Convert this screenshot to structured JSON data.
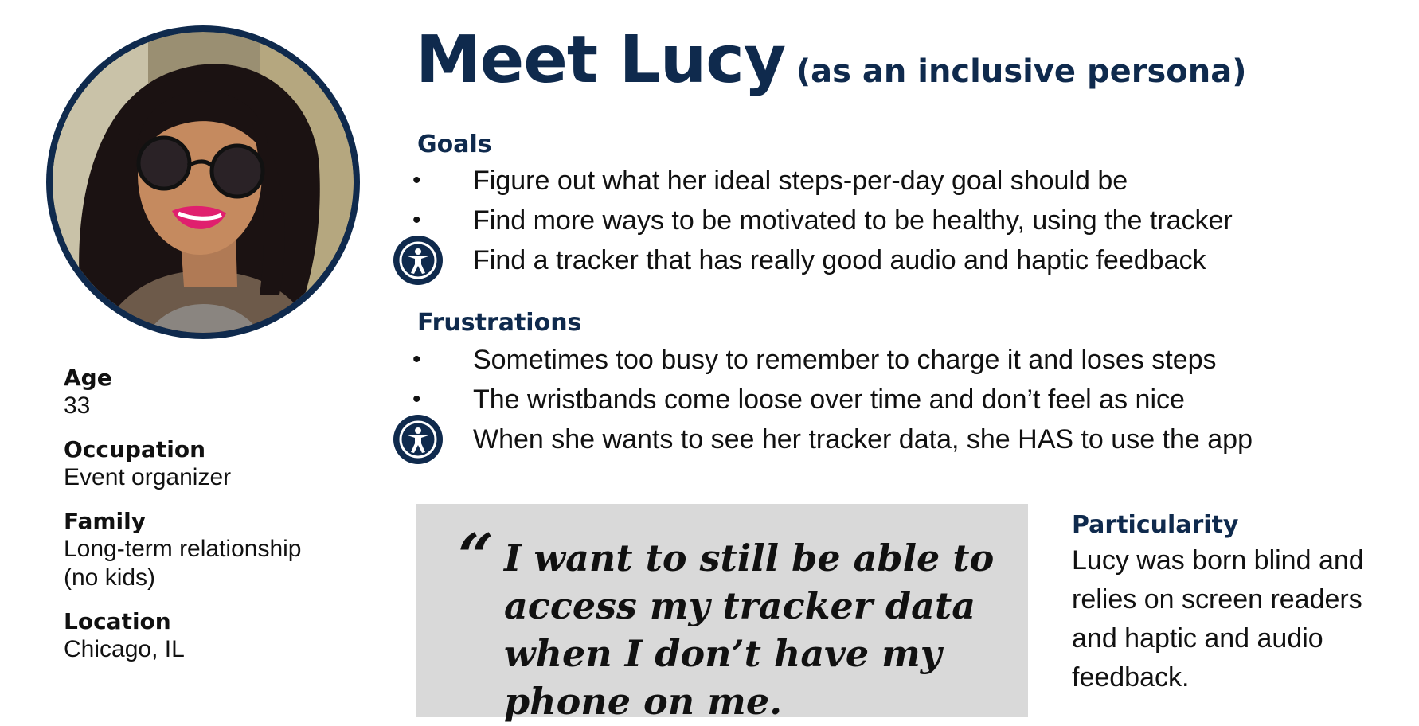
{
  "title": {
    "main": "Meet Lucy",
    "sub": "(as an inclusive persona)"
  },
  "goals": {
    "heading": "Goals",
    "items": [
      {
        "text": "Figure out what her ideal steps-per-day goal should be",
        "marker": "bullet"
      },
      {
        "text": "Find more ways to be motivated to be healthy, using the tracker",
        "marker": "bullet"
      },
      {
        "text": "Find a tracker that has really good audio and haptic feedback",
        "marker": "accessibility-icon"
      }
    ]
  },
  "frustrations": {
    "heading": "Frustrations",
    "items": [
      {
        "text": "Sometimes too busy to remember to charge it and loses steps",
        "marker": "bullet"
      },
      {
        "text": "The wristbands come loose over time and don’t feel as nice",
        "marker": "bullet"
      },
      {
        "text": "When she wants to see her tracker data, she HAS to use the app",
        "marker": "accessibility-icon"
      }
    ]
  },
  "profile": {
    "age_label": "Age",
    "age": "33",
    "occupation_label": "Occupation",
    "occupation": "Event organizer",
    "family_label": "Family",
    "family_line1": "Long-term relationship",
    "family_line2": "(no kids)",
    "location_label": "Location",
    "location": "Chicago, IL"
  },
  "quote": {
    "mark": "“",
    "text": "I want to still be able to access my tracker data when I don’t have my phone on me."
  },
  "particularity": {
    "heading": "Particularity",
    "text": "Lucy was born blind and relies on screen readers and haptic and audio feedback."
  },
  "colors": {
    "accent": "#0f2a4d",
    "quote_bg": "#d9d9d9",
    "lipstick": "#e0206e"
  },
  "bullet_glyph": "•"
}
